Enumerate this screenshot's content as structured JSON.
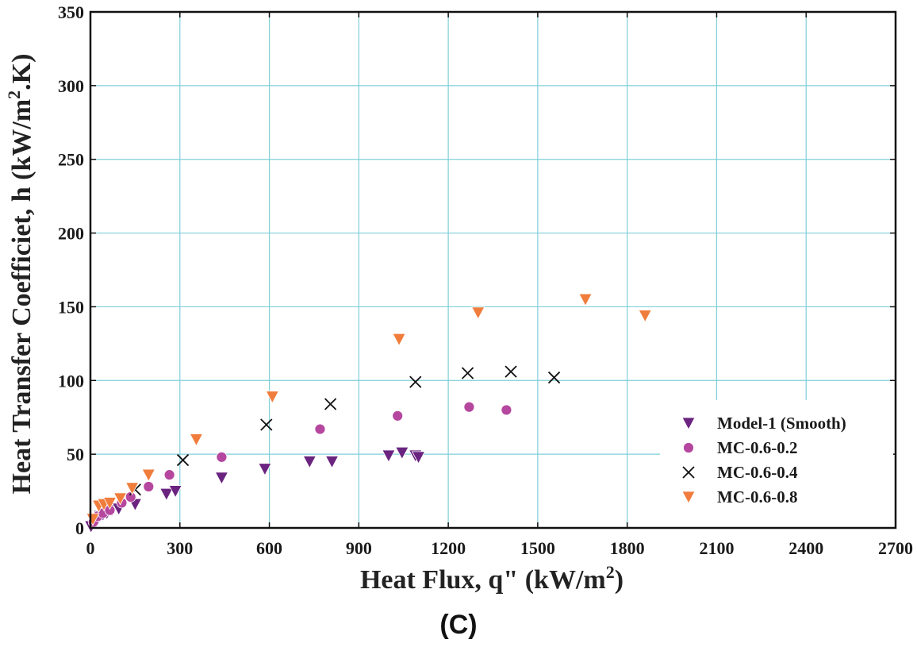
{
  "chart_data": {
    "type": "scatter",
    "title": "",
    "xlabel": "Heat Flux, q\" (kW/m",
    "xlabel_sup": "2",
    "xlabel_tail": ")",
    "ylabel": "Heat Transfer Coefficiet, h (kW/m",
    "ylabel_sup": "2",
    "ylabel_tail": ".K)",
    "xlim": [
      0,
      2700
    ],
    "ylim": [
      0,
      350
    ],
    "xticks": [
      "0",
      "300",
      "600",
      "900",
      "1200",
      "1500",
      "1800",
      "2100",
      "2400",
      "2700"
    ],
    "yticks": [
      "0",
      "50",
      "100",
      "150",
      "200",
      "250",
      "300",
      "350"
    ],
    "grid": true,
    "legend_position": "bottom-right",
    "series": [
      {
        "name": "Model-1 (Smooth)",
        "marker": "triangle-down",
        "color": "#6a2480",
        "points": [
          [
            2,
            1
          ],
          [
            18,
            4
          ],
          [
            25,
            6
          ],
          [
            32,
            8
          ],
          [
            42,
            9
          ],
          [
            55,
            10
          ],
          [
            72,
            12
          ],
          [
            95,
            13
          ],
          [
            150,
            16
          ],
          [
            255,
            23
          ],
          [
            285,
            25
          ],
          [
            440,
            34
          ],
          [
            585,
            40
          ],
          [
            735,
            45
          ],
          [
            810,
            45
          ],
          [
            1000,
            49
          ],
          [
            1045,
            51
          ],
          [
            1090,
            49
          ],
          [
            1100,
            48
          ]
        ]
      },
      {
        "name": "MC-0.6-0.2",
        "marker": "circle",
        "color": "#b5479f",
        "points": [
          [
            10,
            4
          ],
          [
            25,
            8
          ],
          [
            42,
            10
          ],
          [
            65,
            12
          ],
          [
            105,
            17
          ],
          [
            135,
            21
          ],
          [
            195,
            28
          ],
          [
            265,
            36
          ],
          [
            440,
            48
          ],
          [
            770,
            67
          ],
          [
            1030,
            76
          ],
          [
            1270,
            82
          ],
          [
            1395,
            80
          ]
        ]
      },
      {
        "name": "MC-0.6-0.4",
        "marker": "x",
        "color": "#111111",
        "points": [
          [
            150,
            26
          ],
          [
            310,
            46
          ],
          [
            590,
            70
          ],
          [
            805,
            84
          ],
          [
            1090,
            99
          ],
          [
            1265,
            105
          ],
          [
            1410,
            106
          ],
          [
            1555,
            102
          ]
        ]
      },
      {
        "name": "MC-0.6-0.8",
        "marker": "triangle-down",
        "color": "#f07d3c",
        "points": [
          [
            8,
            6
          ],
          [
            28,
            15
          ],
          [
            45,
            16
          ],
          [
            65,
            17
          ],
          [
            100,
            20
          ],
          [
            140,
            27
          ],
          [
            195,
            36
          ],
          [
            355,
            60
          ],
          [
            610,
            89
          ],
          [
            1035,
            128
          ],
          [
            1300,
            146
          ],
          [
            1660,
            155
          ],
          [
            1860,
            144
          ]
        ]
      }
    ]
  },
  "caption": "(C)"
}
